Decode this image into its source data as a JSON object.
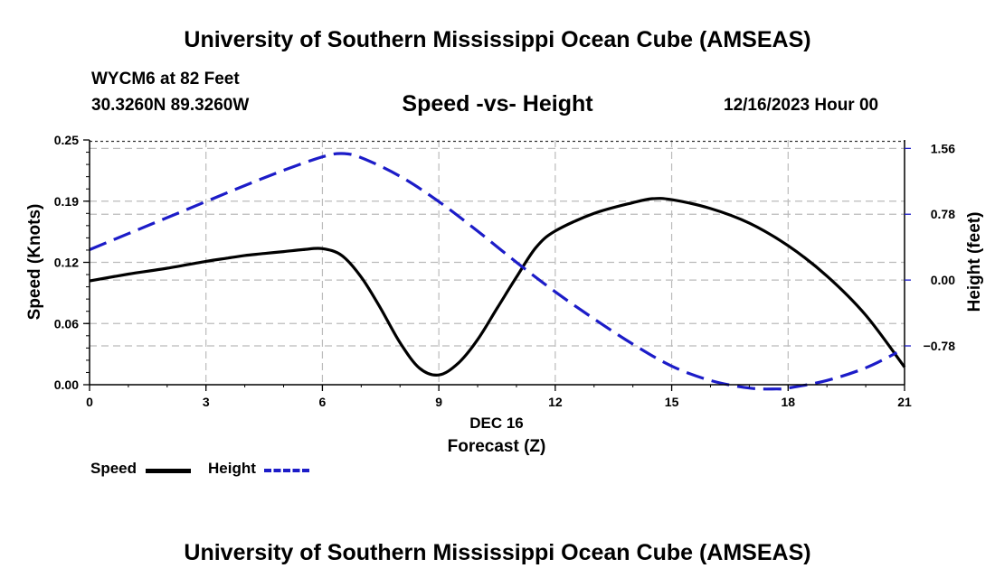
{
  "header": {
    "title": "University of Southern Mississippi Ocean Cube (AMSEAS)",
    "station": "WYCM6 at 82 Feet",
    "coords": "30.3260N  89.3260W",
    "datetime": "12/16/2023 Hour 00"
  },
  "footer": {
    "title": "University of Southern Mississippi Ocean Cube (AMSEAS)"
  },
  "legend": {
    "speed_label": "Speed",
    "height_label": "Height"
  },
  "chart_data": {
    "type": "line",
    "title": "Speed -vs- Height",
    "xlabel": "Forecast (Z)",
    "xlabel_date": "DEC 16",
    "ylabel": "Speed (Knots)",
    "y2label": "Height (feet)",
    "xlim": [
      0,
      21
    ],
    "ylim": [
      0,
      0.25
    ],
    "y2lim": [
      -1.24,
      1.66
    ],
    "x_ticks": [
      "0",
      "3",
      "6",
      "9",
      "12",
      "15",
      "18",
      "21"
    ],
    "y_ticks": [
      {
        "value": 0.0,
        "label": "0.00"
      },
      {
        "value": 0.0625,
        "label": "0.06"
      },
      {
        "value": 0.125,
        "label": "0.12"
      },
      {
        "value": 0.1875,
        "label": "0.19"
      },
      {
        "value": 0.25,
        "label": "0.25"
      }
    ],
    "y2_ticks": [
      {
        "value": -0.78,
        "label": "−0.78"
      },
      {
        "value": 0.0,
        "label": "0.00"
      },
      {
        "value": 0.78,
        "label": "0.78"
      },
      {
        "value": 1.56,
        "label": "1.56"
      }
    ],
    "grid": true,
    "colors": {
      "speed": "#000000",
      "height": "#1c1cc8",
      "grid": "#bbbbbb"
    },
    "series": [
      {
        "name": "Speed",
        "axis": "left",
        "style": "solid",
        "x": [
          0,
          1,
          2,
          3,
          3.5,
          4,
          4.5,
          5,
          5.5,
          6,
          6.5,
          7,
          7.5,
          8,
          8.5,
          9,
          9.5,
          10,
          10.5,
          11,
          11.5,
          12,
          13,
          14,
          14.5,
          15,
          16,
          17,
          18,
          19,
          20,
          21
        ],
        "values": [
          0.106,
          0.113,
          0.119,
          0.126,
          0.129,
          0.132,
          0.134,
          0.136,
          0.138,
          0.139,
          0.132,
          0.11,
          0.078,
          0.043,
          0.017,
          0.01,
          0.022,
          0.046,
          0.078,
          0.11,
          0.14,
          0.157,
          0.175,
          0.186,
          0.19,
          0.189,
          0.18,
          0.165,
          0.142,
          0.111,
          0.071,
          0.018
        ]
      },
      {
        "name": "Height",
        "axis": "right",
        "style": "dashed",
        "x": [
          0,
          1,
          2,
          3,
          4,
          5,
          6,
          6.5,
          7,
          8,
          9,
          10,
          11,
          12,
          13,
          14,
          15,
          16,
          17,
          17.7,
          18,
          19,
          20,
          20.8
        ],
        "values": [
          0.36,
          0.55,
          0.74,
          0.93,
          1.12,
          1.3,
          1.46,
          1.5,
          1.45,
          1.23,
          0.93,
          0.58,
          0.21,
          -0.14,
          -0.46,
          -0.76,
          -1.02,
          -1.19,
          -1.28,
          -1.29,
          -1.28,
          -1.19,
          -1.04,
          -0.86
        ]
      }
    ]
  }
}
